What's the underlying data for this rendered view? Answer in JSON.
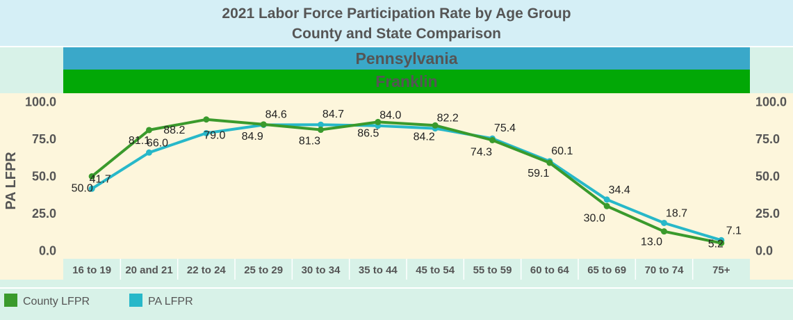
{
  "chart_data": {
    "type": "line",
    "title": "2021 Labor Force Participation Rate by Age Group",
    "subtitle": "County and State Comparison",
    "band_top": "Pennsylvania",
    "band_bottom": "Franklin",
    "ylabel": "PA LFPR",
    "xlabel": "",
    "ylim": [
      0,
      100
    ],
    "y_ticks": [
      "0.0",
      "25.0",
      "50.0",
      "75.0",
      "100.0"
    ],
    "y_tick_values": [
      0,
      25,
      50,
      75,
      100
    ],
    "categories": [
      "16 to 19",
      "20 and 21",
      "22 to 24",
      "25 to 29",
      "30 to 34",
      "35 to 44",
      "45 to 54",
      "55 to 59",
      "60 to 64",
      "65 to 69",
      "70 to 74",
      "75+"
    ],
    "series": [
      {
        "name": "County LFPR",
        "color": "#3a9a2c",
        "values": [
          50.0,
          81.1,
          88.2,
          84.9,
          81.3,
          86.5,
          84.2,
          74.3,
          59.1,
          30.0,
          13.0,
          5.2
        ],
        "labels": [
          "50.0",
          "81.1",
          "88.2",
          "84.9",
          "81.3",
          "86.5",
          "84.2",
          "74.3",
          "59.1",
          "30.0",
          "13.0",
          "5.2"
        ]
      },
      {
        "name": "PA LFPR",
        "color": "#27b8c9",
        "values": [
          41.7,
          66.0,
          79.0,
          84.6,
          84.7,
          84.0,
          82.2,
          75.4,
          60.1,
          34.4,
          18.7,
          7.1
        ],
        "labels": [
          "41.7",
          "66.0",
          "79.0",
          "84.6",
          "84.7",
          "84.0",
          "82.2",
          "75.4",
          "60.1",
          "34.4",
          "18.7",
          "7.1"
        ]
      }
    ],
    "legend_position": "bottom-left",
    "grid": false
  },
  "colors": {
    "title_bg": "#d5eff6",
    "side_bg": "#d8f2e8",
    "plot_bg": "#fdf6dc",
    "band_top_bg": "#3aa8c9",
    "band_bottom_bg": "#02a806",
    "band_text": "#555555",
    "axis_text": "#555555",
    "xaxis_bg": "#d8f2e8",
    "legend_bg": "#d8f2e8"
  }
}
